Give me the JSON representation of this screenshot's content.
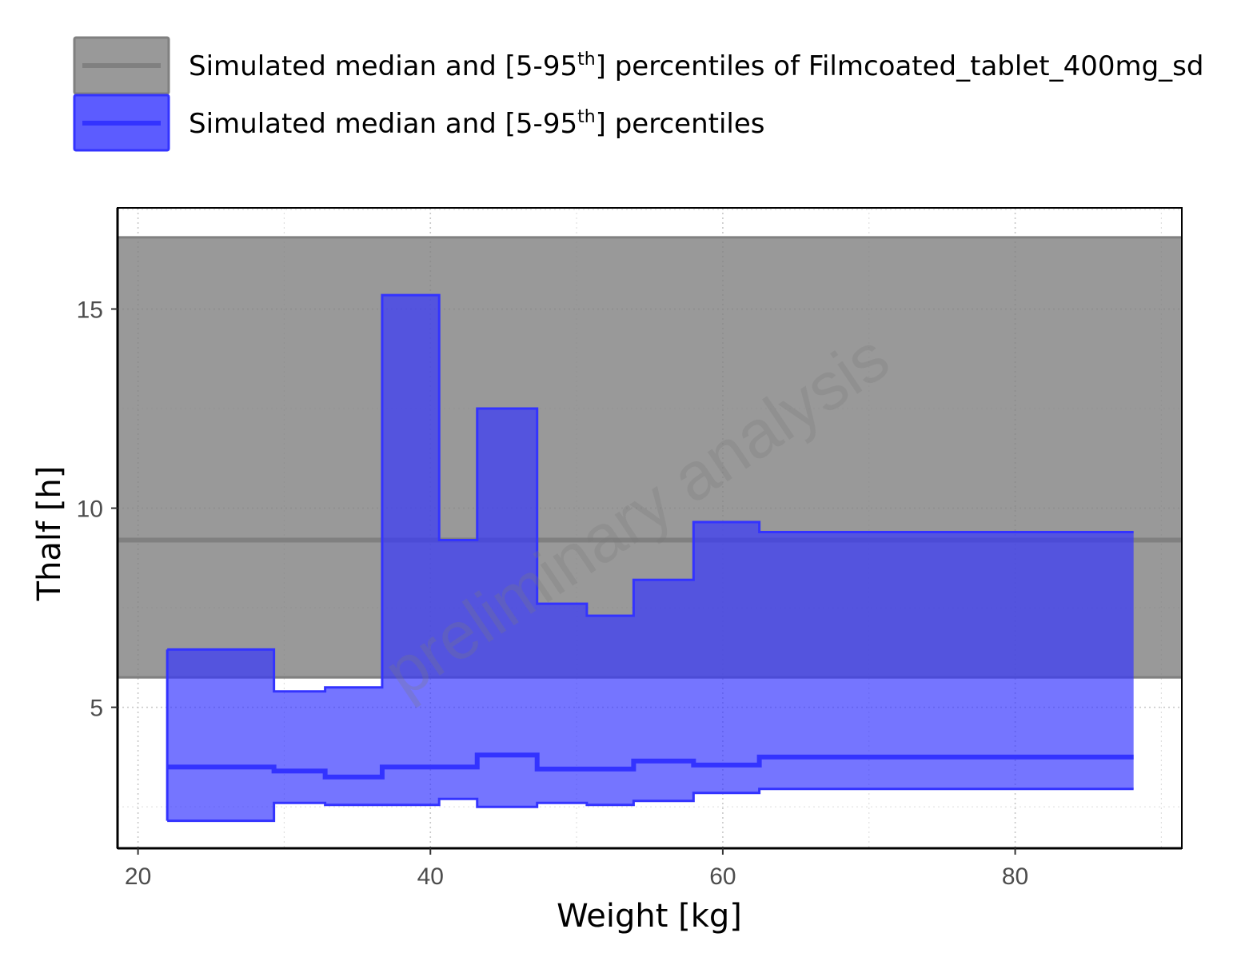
{
  "chart_data": {
    "type": "area",
    "xlabel": "Weight [kg]",
    "ylabel": "Thalf [h]",
    "xlim": [
      18.6,
      91.4
    ],
    "ylim": [
      1.46,
      17.54
    ],
    "x_ticks": [
      20,
      40,
      60,
      80
    ],
    "y_ticks": [
      5,
      10,
      15
    ],
    "x_tick_labels": [
      "20",
      "40",
      "60",
      "80"
    ],
    "y_tick_labels": [
      "5",
      "10",
      "15"
    ],
    "grid": true,
    "legend_position": "top",
    "watermark": "preliminary analysis",
    "reference_band": {
      "legend_main": "Simulated median and [5-95",
      "legend_sup": "th",
      "legend_tail": "] percentiles of Filmcoated_tablet_400mg_sd",
      "color": "#808080",
      "median": 9.2,
      "lower": 5.75,
      "upper": 16.8
    },
    "series": [
      {
        "legend_main": "Simulated median and [5-95",
        "legend_sup": "th",
        "legend_tail": "] percentiles",
        "color": "#3333ff",
        "bins": [
          {
            "x0": 22.0,
            "x1": 29.3,
            "median": 3.5,
            "lower": 2.15,
            "upper": 6.45
          },
          {
            "x0": 29.3,
            "x1": 32.8,
            "median": 3.4,
            "lower": 2.6,
            "upper": 5.4
          },
          {
            "x0": 32.8,
            "x1": 36.7,
            "median": 3.25,
            "lower": 2.55,
            "upper": 5.5
          },
          {
            "x0": 36.7,
            "x1": 40.6,
            "median": 3.5,
            "lower": 2.55,
            "upper": 15.35
          },
          {
            "x0": 40.6,
            "x1": 43.2,
            "median": 3.5,
            "lower": 2.7,
            "upper": 9.2
          },
          {
            "x0": 43.2,
            "x1": 47.3,
            "median": 3.8,
            "lower": 2.5,
            "upper": 12.5
          },
          {
            "x0": 47.3,
            "x1": 50.7,
            "median": 3.45,
            "lower": 2.6,
            "upper": 7.6
          },
          {
            "x0": 50.7,
            "x1": 53.9,
            "median": 3.45,
            "lower": 2.55,
            "upper": 7.3
          },
          {
            "x0": 53.9,
            "x1": 58.0,
            "median": 3.65,
            "lower": 2.65,
            "upper": 8.2
          },
          {
            "x0": 58.0,
            "x1": 62.5,
            "median": 3.55,
            "lower": 2.85,
            "upper": 9.65
          },
          {
            "x0": 62.5,
            "x1": 88.1,
            "median": 3.75,
            "lower": 2.95,
            "upper": 9.4
          }
        ]
      }
    ]
  }
}
